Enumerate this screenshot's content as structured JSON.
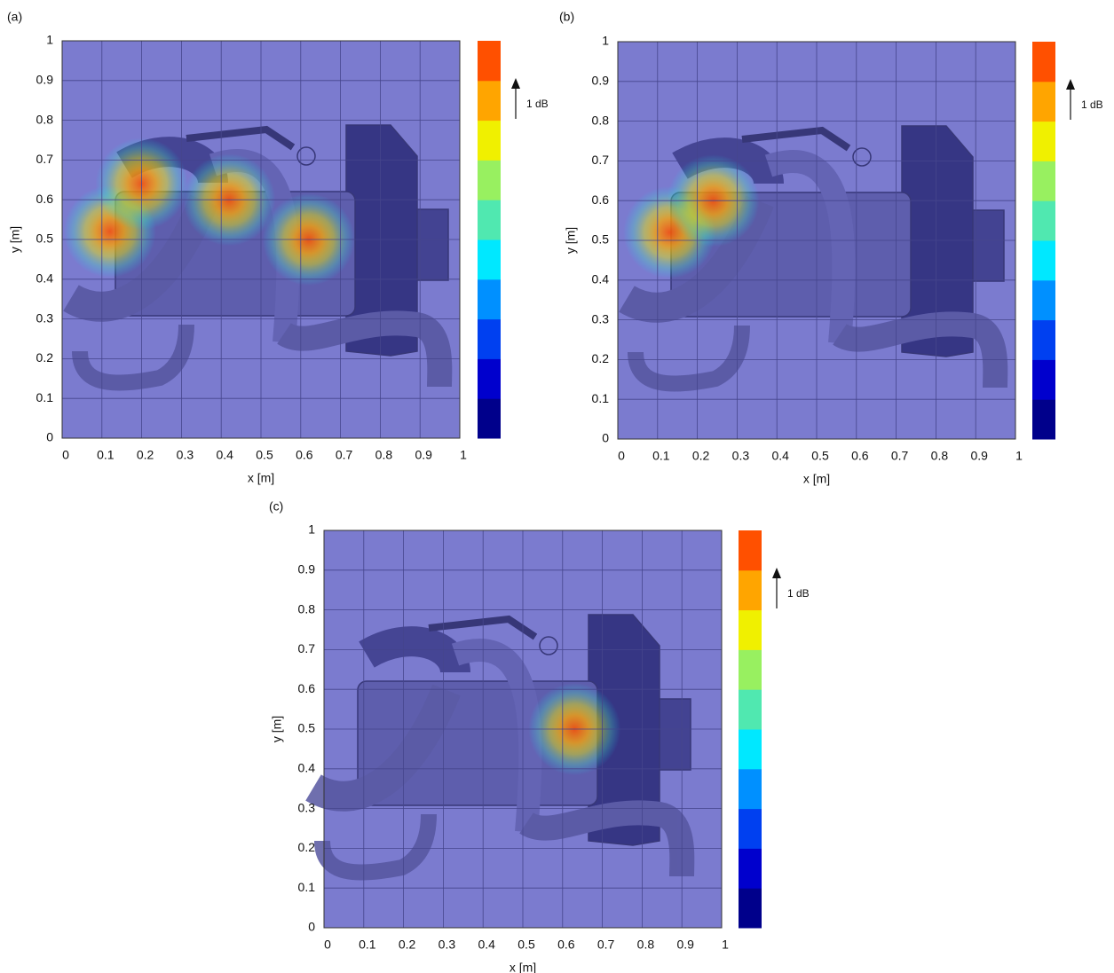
{
  "chart_data": [
    {
      "type": "heatmap",
      "panel_label": "(a)",
      "xlabel": "x [m]",
      "ylabel": "y [m]",
      "xlim": [
        0,
        1
      ],
      "ylim": [
        0,
        1
      ],
      "xticks": [
        0,
        0.1,
        0.2,
        0.3,
        0.4,
        0.5,
        0.6,
        0.7,
        0.8,
        0.9,
        1
      ],
      "yticks": [
        0,
        0.1,
        0.2,
        0.3,
        0.4,
        0.5,
        0.6,
        0.7,
        0.8,
        0.9,
        1
      ],
      "grid": true,
      "background": "#7b7bcf",
      "hotspots": {
        "x": [
          0.12,
          0.2,
          0.42,
          0.62
        ],
        "y": [
          0.52,
          0.64,
          0.6,
          0.5
        ]
      },
      "colorbar": [
        "#00008b",
        "#0000cd",
        "#0040f0",
        "#0090ff",
        "#00e8ff",
        "#50e8b0",
        "#98f060",
        "#f0f000",
        "#ffa500",
        "#ff5000"
      ],
      "annotation": "1 dB"
    },
    {
      "type": "heatmap",
      "panel_label": "(b)",
      "xlabel": "x [m]",
      "ylabel": "y [m]",
      "xlim": [
        0,
        1
      ],
      "ylim": [
        0,
        1
      ],
      "xticks": [
        0,
        0.1,
        0.2,
        0.3,
        0.4,
        0.5,
        0.6,
        0.7,
        0.8,
        0.9,
        1
      ],
      "yticks": [
        0,
        0.1,
        0.2,
        0.3,
        0.4,
        0.5,
        0.6,
        0.7,
        0.8,
        0.9,
        1
      ],
      "grid": true,
      "background": "#7b7bcf",
      "hotspots": {
        "x": [
          0.13,
          0.24
        ],
        "y": [
          0.52,
          0.6
        ]
      },
      "colorbar": [
        "#00008b",
        "#0000cd",
        "#0040f0",
        "#0090ff",
        "#00e8ff",
        "#50e8b0",
        "#98f060",
        "#f0f000",
        "#ffa500",
        "#ff5000"
      ],
      "annotation": "1 dB"
    },
    {
      "type": "heatmap",
      "panel_label": "(c)",
      "xlabel": "x [m]",
      "ylabel": "y [m]",
      "xlim": [
        0,
        1
      ],
      "ylim": [
        0,
        1
      ],
      "xticks": [
        0,
        0.1,
        0.2,
        0.3,
        0.4,
        0.5,
        0.6,
        0.7,
        0.8,
        0.9,
        1
      ],
      "yticks": [
        0,
        0.1,
        0.2,
        0.3,
        0.4,
        0.5,
        0.6,
        0.7,
        0.8,
        0.9,
        1
      ],
      "grid": true,
      "background": "#7b7bcf",
      "hotspots": {
        "x": [
          0.63
        ],
        "y": [
          0.5
        ]
      },
      "colorbar": [
        "#00008b",
        "#0000cd",
        "#0040f0",
        "#0090ff",
        "#00e8ff",
        "#50e8b0",
        "#98f060",
        "#f0f000",
        "#ffa500",
        "#ff5000"
      ],
      "annotation": "1 dB"
    }
  ]
}
